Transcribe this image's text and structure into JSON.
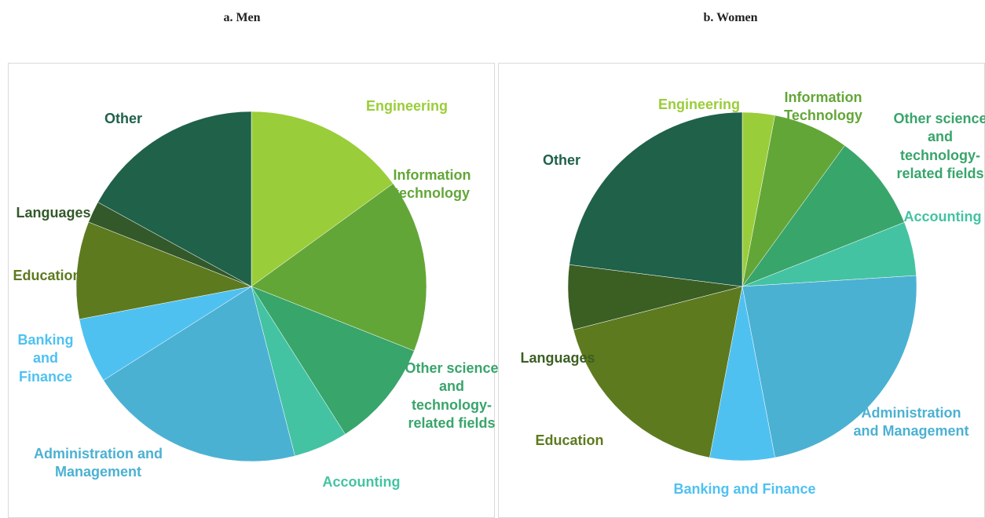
{
  "chart_data": [
    {
      "type": "pie",
      "title": "a. Men",
      "categories": [
        "Engineering",
        "Information technology",
        "Other science and technology-related fields",
        "Accounting",
        "Administration and Management",
        "Banking and Finance",
        "Education",
        "Languages",
        "Other"
      ],
      "values": [
        15,
        16,
        10,
        5,
        20,
        6,
        9,
        2,
        17
      ],
      "colors": [
        "#9acd3a",
        "#63a638",
        "#38a56b",
        "#44c3a3",
        "#4bb1d3",
        "#4fc1f1",
        "#5d7a1f",
        "#33592a",
        "#1f6149"
      ]
    },
    {
      "type": "pie",
      "title": "b. Women",
      "categories": [
        "Engineering",
        "Information Technology",
        "Other science and technology-related fields",
        "Accounting",
        "Administration and Management",
        "Banking and Finance",
        "Education",
        "Languages",
        "Other"
      ],
      "values": [
        3,
        7,
        9,
        5,
        23,
        6,
        18,
        6,
        23
      ],
      "colors": [
        "#9acd3a",
        "#63a638",
        "#38a56b",
        "#44c3a3",
        "#4bb1d3",
        "#4fc1f1",
        "#5d7a1f",
        "#3b5f23",
        "#1f6149"
      ]
    }
  ]
}
